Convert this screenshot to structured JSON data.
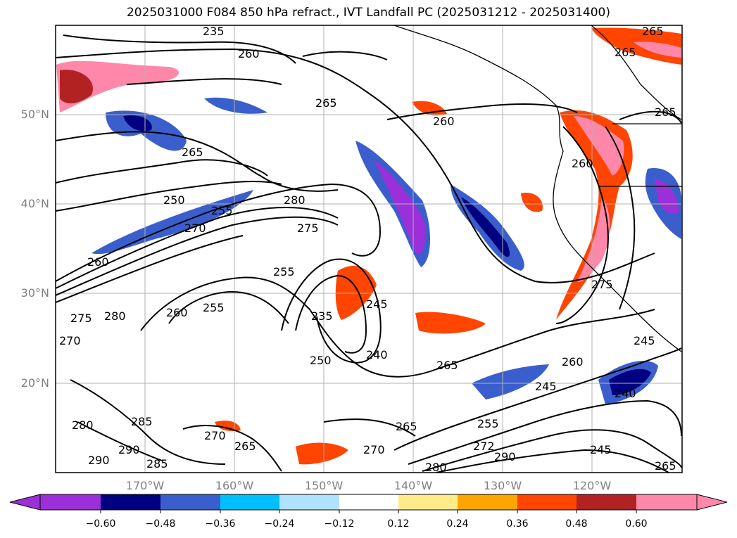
{
  "title": "2025031000 F084 850 hPa refract., IVT Landfall PC (2025031212 - 2025031400)",
  "map": {
    "lat_labels": [
      "50°N",
      "40°N",
      "30°N",
      "20°N"
    ],
    "lon_labels": [
      "170°W",
      "160°W",
      "150°W",
      "140°W",
      "130°W",
      "120°W"
    ],
    "contour_labels": [
      "235",
      "260",
      "265",
      "265",
      "260",
      "265",
      "265",
      "250",
      "255",
      "280",
      "275",
      "260",
      "270",
      "255",
      "260",
      "255",
      "235",
      "245",
      "240",
      "250",
      "265",
      "275",
      "280",
      "270",
      "280",
      "290",
      "285",
      "290",
      "285",
      "270",
      "265",
      "270",
      "265",
      "280",
      "255",
      "272",
      "290",
      "245",
      "260",
      "240",
      "265",
      "275",
      "245",
      "260",
      "245",
      "265"
    ]
  },
  "colorbar": {
    "ticks": [
      "−0.60",
      "−0.48",
      "−0.36",
      "−0.24",
      "−0.12",
      "0.12",
      "0.24",
      "0.36",
      "0.48",
      "0.60"
    ],
    "colors": [
      "#9b30d8",
      "#000080",
      "#3a5fcd",
      "#00bfff",
      "#b0e2ff",
      "#ffffff",
      "#ffeb8a",
      "#ffa500",
      "#ff4500",
      "#b22222",
      "#ff88aa",
      "#ff88aa"
    ]
  }
}
